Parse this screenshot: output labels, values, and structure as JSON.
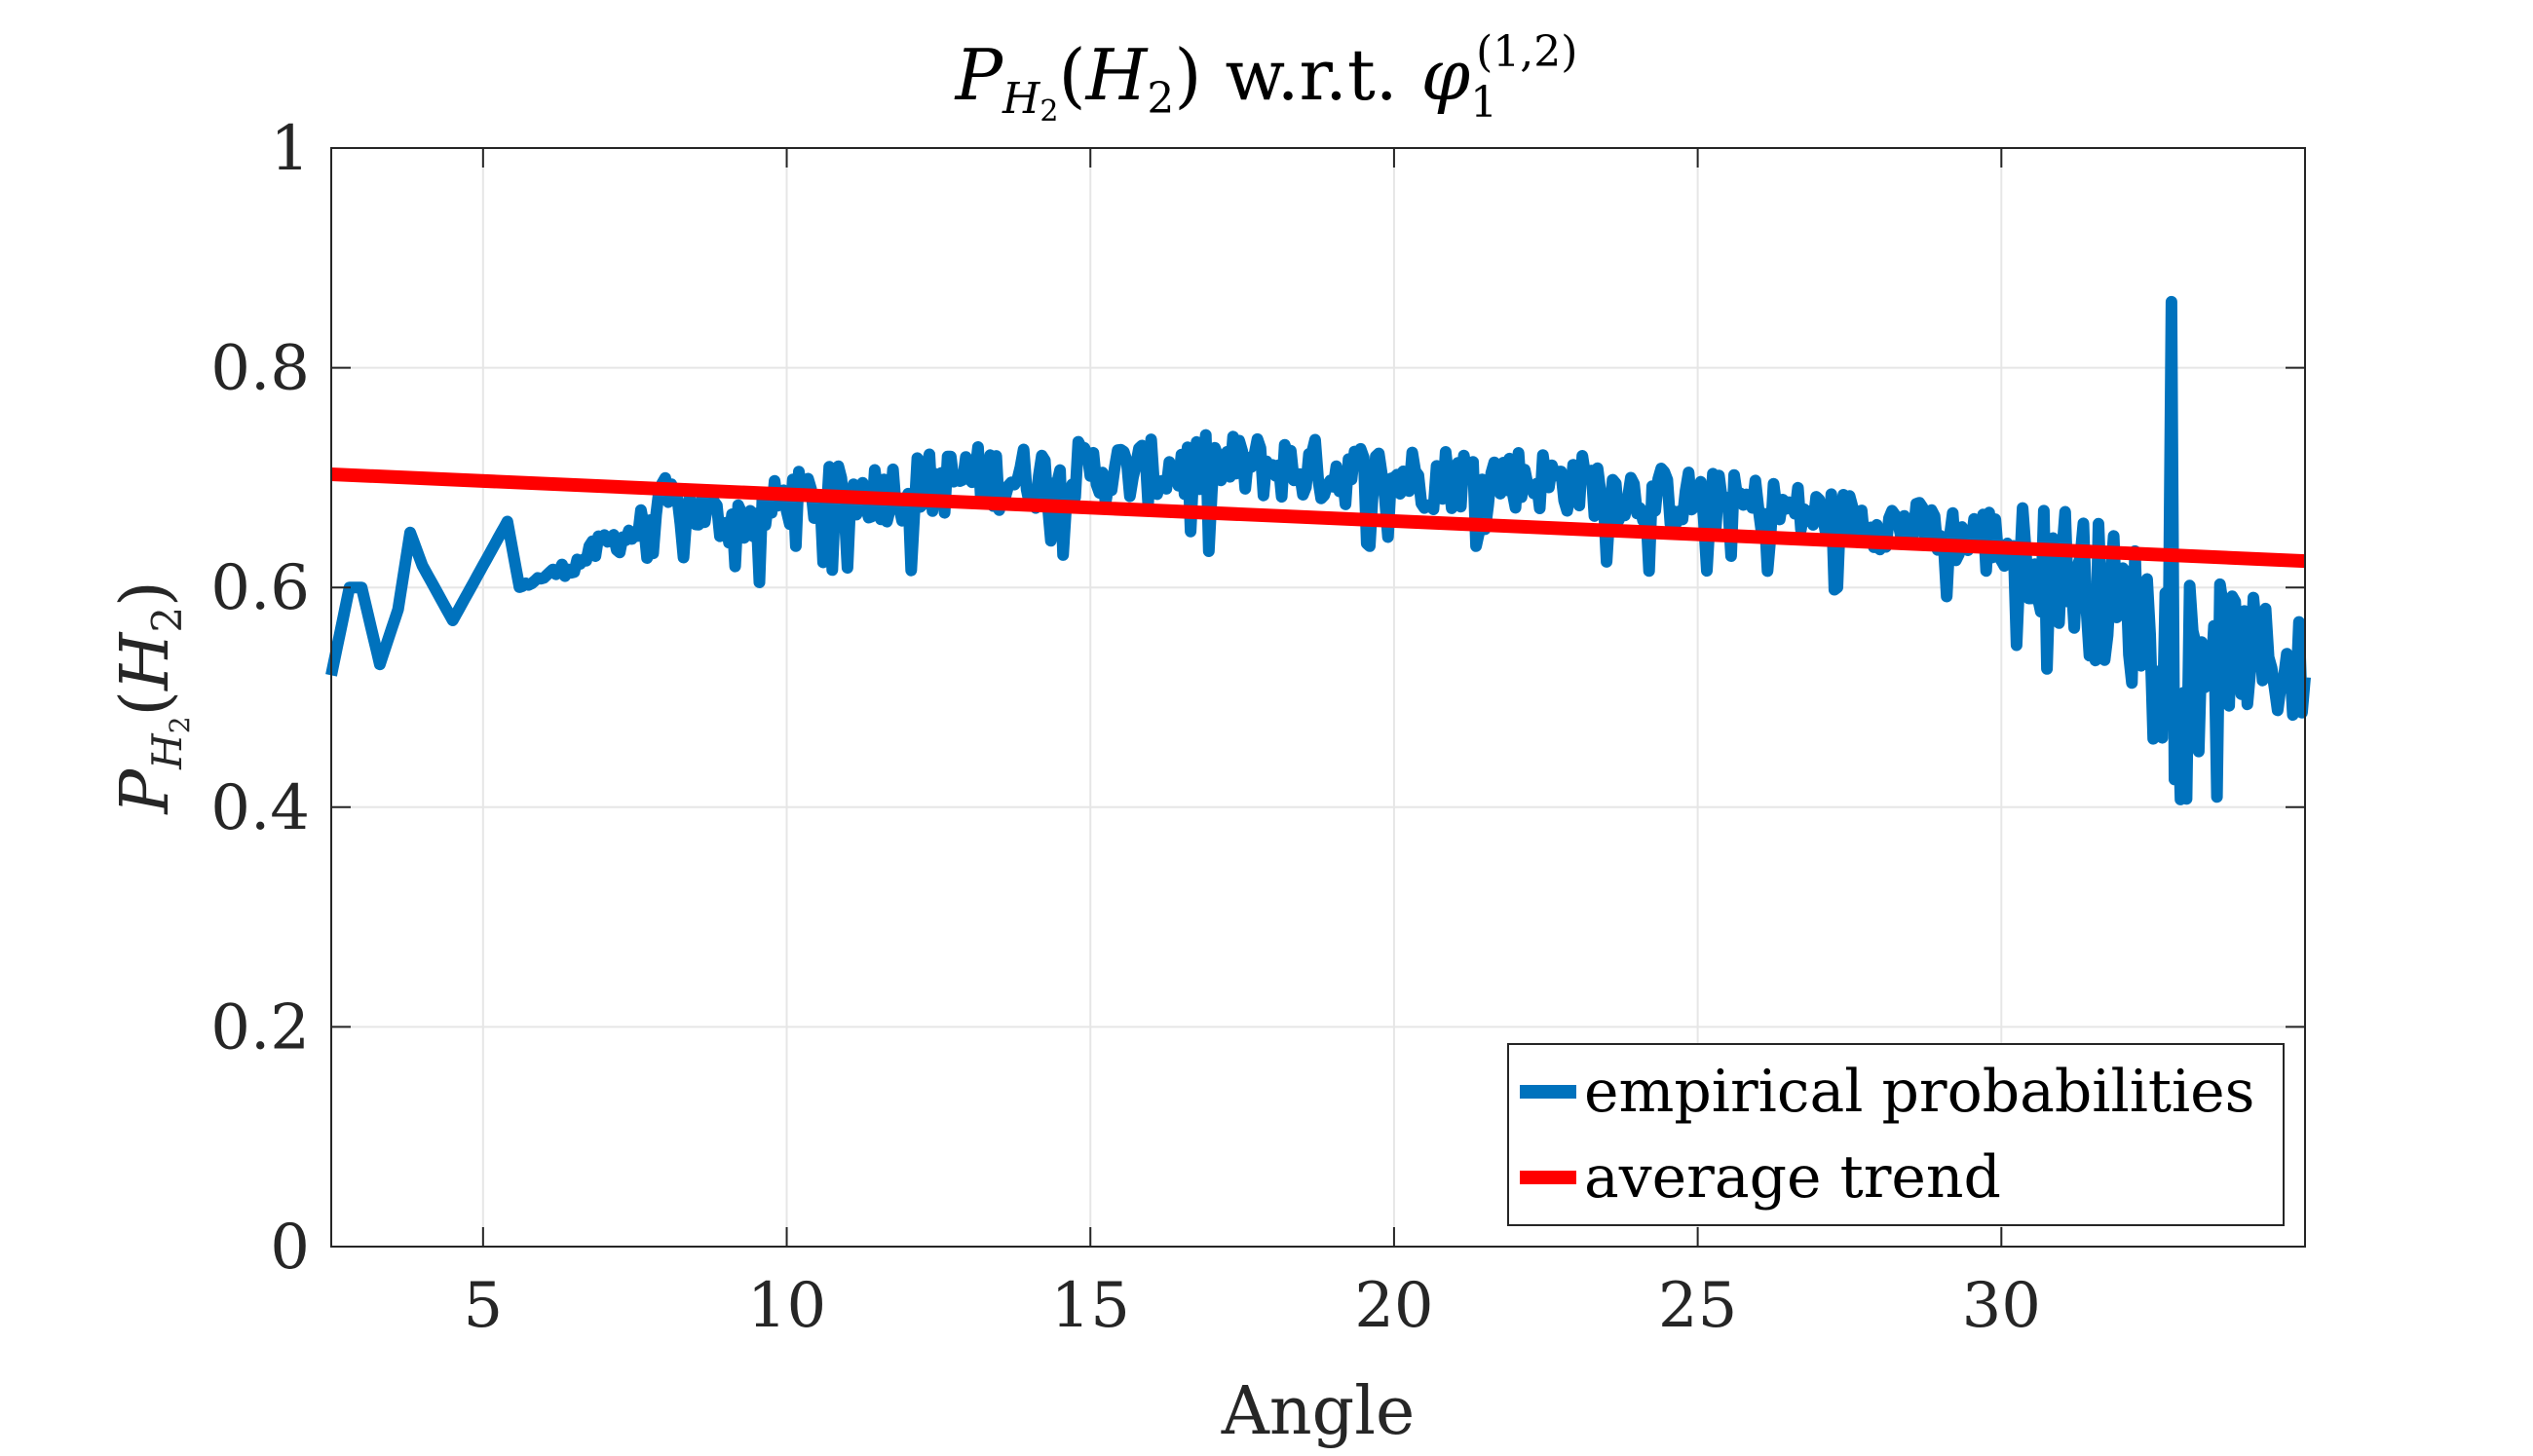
{
  "chart_data": {
    "type": "line",
    "title": {
      "main": "P",
      "sub": "H",
      "sub2": "2",
      "paren_open": "(",
      "hat_symbol": "H",
      "hat_sub": "2",
      "paren_close": ")",
      "wrt": "w.r.t.",
      "phi": "φ",
      "phi_sub": "1",
      "phi_sup": "(1,2)"
    },
    "xlabel": "Angle",
    "ylabel": {
      "main": "P",
      "sub": "H",
      "sub2": "2",
      "paren_open": "(",
      "hat_symbol": "H",
      "hat_sub": "2",
      "paren_close": ")"
    },
    "xlim": [
      2.5,
      35
    ],
    "ylim": [
      0,
      1
    ],
    "xticks": [
      5,
      10,
      15,
      20,
      25,
      30
    ],
    "yticks": [
      0,
      0.2,
      0.4,
      0.6,
      0.8,
      1
    ],
    "xtick_labels": [
      "5",
      "10",
      "15",
      "20",
      "25",
      "30"
    ],
    "ytick_labels": [
      "0",
      "0.2",
      "0.4",
      "0.6",
      "0.8",
      "1"
    ],
    "grid": true,
    "legend_position": "bottom-right",
    "series": [
      {
        "name": "empirical probabilities",
        "color": "#0072BD",
        "kind": "noisy",
        "anchors": {
          "x": [
            2.5,
            2.8,
            3.0,
            3.3,
            3.6,
            3.8,
            4.0,
            4.5,
            5.0,
            5.4,
            5.6,
            6.0,
            6.5,
            7.0,
            7.5,
            8.0,
            8.5,
            9.0,
            9.5,
            10.0,
            11.0,
            12.0,
            13.0,
            14.0,
            15.0,
            16.0,
            17.0,
            18.0,
            19.0,
            20.0,
            21.0,
            22.0,
            23.0,
            24.0,
            25.0,
            26.0,
            27.0,
            28.0,
            29.0,
            30.0,
            31.0,
            32.0,
            33.0,
            34.0,
            35.0
          ],
          "y": [
            0.52,
            0.6,
            0.6,
            0.53,
            0.58,
            0.65,
            0.62,
            0.57,
            0.62,
            0.66,
            0.6,
            0.61,
            0.62,
            0.64,
            0.65,
            0.68,
            0.67,
            0.66,
            0.665,
            0.68,
            0.685,
            0.69,
            0.7,
            0.7,
            0.705,
            0.705,
            0.71,
            0.71,
            0.705,
            0.7,
            0.7,
            0.7,
            0.695,
            0.685,
            0.68,
            0.675,
            0.665,
            0.66,
            0.65,
            0.64,
            0.62,
            0.58,
            0.56,
            0.54,
            0.52
          ]
        },
        "noise_amplitude": {
          "x": [
            2.5,
            5.5,
            8.0,
            10.0,
            12.0,
            20.0,
            29.0,
            30.0,
            31.0,
            32.0,
            33.0,
            35.0
          ],
          "y": [
            0.0,
            0.0,
            0.02,
            0.025,
            0.03,
            0.03,
            0.025,
            0.035,
            0.06,
            0.07,
            0.06,
            0.05
          ]
        },
        "spike": {
          "x": 32.8,
          "y": 0.86
        },
        "step": 0.05
      },
      {
        "name": "average trend",
        "color": "#FF0000",
        "kind": "linear",
        "x": [
          2.5,
          35
        ],
        "y": [
          0.703,
          0.624
        ]
      }
    ]
  }
}
